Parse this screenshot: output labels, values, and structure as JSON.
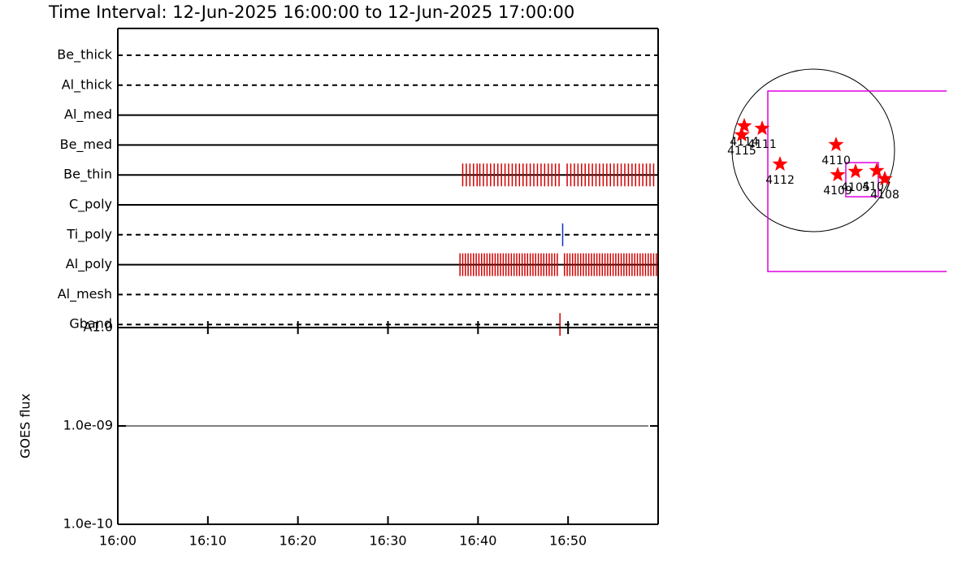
{
  "chart_data": [
    {
      "type": "event",
      "title": "Time Interval: 12-Jun-2025 16:00:00 to 12-Jun-2025 17:00:00",
      "xlim": [
        0,
        60
      ],
      "xticks": [
        {
          "value": 0,
          "label": "16:00"
        },
        {
          "value": 10,
          "label": "16:10"
        },
        {
          "value": 20,
          "label": "16:20"
        },
        {
          "value": 30,
          "label": "16:30"
        },
        {
          "value": 40,
          "label": "16:40"
        },
        {
          "value": 50,
          "label": "16:50"
        }
      ],
      "rows": [
        {
          "name": "Be_thick",
          "style": "dashed",
          "color": "#d00000",
          "events": []
        },
        {
          "name": "Al_thick",
          "style": "dashed",
          "color": "#d00000",
          "events": []
        },
        {
          "name": "Al_med",
          "style": "solid",
          "color": "#d00000",
          "events": []
        },
        {
          "name": "Be_med",
          "style": "solid",
          "color": "#d00000",
          "events": []
        },
        {
          "name": "Be_thin",
          "style": "solid",
          "color": "#d00000",
          "events": [
            38.3,
            38.7,
            39.1,
            39.5,
            39.9,
            40.2,
            40.6,
            41.0,
            41.4,
            41.8,
            42.2,
            42.6,
            43.0,
            43.4,
            43.8,
            44.2,
            44.6,
            45.0,
            45.4,
            45.8,
            46.2,
            46.6,
            47.0,
            47.4,
            47.8,
            48.2,
            48.6,
            49.0,
            49.9,
            50.3,
            50.7,
            51.1,
            51.5,
            51.9,
            52.3,
            52.7,
            53.1,
            53.5,
            53.9,
            54.3,
            54.7,
            55.1,
            55.5,
            55.9,
            56.3,
            56.7,
            57.1,
            57.5,
            57.9,
            58.3,
            58.7,
            59.1,
            59.5
          ]
        },
        {
          "name": "C_poly",
          "style": "solid",
          "color": "#d00000",
          "events": []
        },
        {
          "name": "Ti_poly",
          "style": "dashed",
          "color": "#1030c0",
          "events": [
            49.4
          ]
        },
        {
          "name": "Al_poly",
          "style": "solid",
          "color": "#d00000",
          "events": [
            38.0,
            38.3,
            38.6,
            38.9,
            39.2,
            39.5,
            39.8,
            40.1,
            40.4,
            40.7,
            41.0,
            41.3,
            41.6,
            41.9,
            42.2,
            42.5,
            42.8,
            43.1,
            43.4,
            43.7,
            44.0,
            44.3,
            44.6,
            44.9,
            45.2,
            45.5,
            45.8,
            46.1,
            46.4,
            46.7,
            47.0,
            47.3,
            47.6,
            47.9,
            48.2,
            48.5,
            48.8,
            49.6,
            49.9,
            50.2,
            50.5,
            50.8,
            51.1,
            51.4,
            51.7,
            52.0,
            52.3,
            52.6,
            52.9,
            53.2,
            53.5,
            53.8,
            54.1,
            54.4,
            54.7,
            55.0,
            55.3,
            55.6,
            55.9,
            56.2,
            56.5,
            56.8,
            57.1,
            57.4,
            57.7,
            58.0,
            58.3,
            58.6,
            58.9,
            59.2,
            59.5,
            59.8
          ]
        },
        {
          "name": "Al_mesh",
          "style": "dashed",
          "color": "#d00000",
          "events": []
        },
        {
          "name": "Gband",
          "style": "dashed",
          "color": "#d00000",
          "events": [
            49.1
          ]
        }
      ]
    },
    {
      "type": "line",
      "ylabel": "GOES flux",
      "log_scale": true,
      "grid": true,
      "ylim": [
        1e-10,
        1e-08
      ],
      "yticks": [
        {
          "value": 1e-10,
          "label": "1.0e-10"
        },
        {
          "value": 1e-09,
          "label": "1.0e-09"
        },
        {
          "value": 1e-08,
          "label": "A1.0"
        }
      ]
    },
    {
      "type": "scatter",
      "solar_radius": 945,
      "star_color": "#ff0000",
      "box_color": "#e000e0",
      "points": [
        {
          "label": "4114",
          "x": -803,
          "y": 284
        },
        {
          "label": "4115",
          "x": -832,
          "y": 180
        },
        {
          "label": "4111",
          "x": -595,
          "y": 255
        },
        {
          "label": "4112",
          "x": -387,
          "y": -161
        },
        {
          "label": "4110",
          "x": 265,
          "y": 66
        },
        {
          "label": "4109",
          "x": 284,
          "y": -284
        },
        {
          "label": "4105",
          "x": 491,
          "y": -246
        },
        {
          "label": "4107",
          "x": 737,
          "y": -236
        },
        {
          "label": "4108",
          "x": 832,
          "y": -331
        }
      ],
      "boxes": [
        {
          "x": [
            -529,
            1739
          ],
          "y": [
            -1408,
            690
          ]
        },
        {
          "x": [
            378,
            756
          ],
          "y": [
            -539,
            -142
          ]
        }
      ]
    }
  ]
}
